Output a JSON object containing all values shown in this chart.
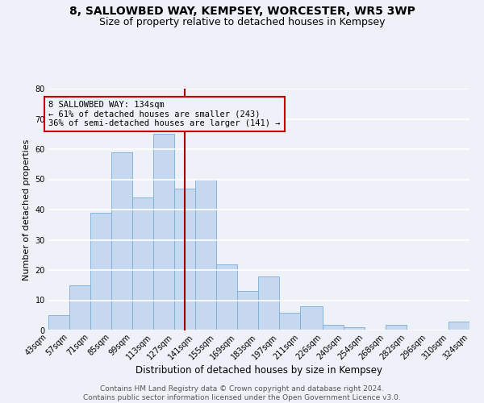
{
  "title": "8, SALLOWBED WAY, KEMPSEY, WORCESTER, WR5 3WP",
  "subtitle": "Size of property relative to detached houses in Kempsey",
  "xlabel": "Distribution of detached houses by size in Kempsey",
  "ylabel": "Number of detached properties",
  "bar_color": "#c5d8f0",
  "bar_edge_color": "#7aadd4",
  "background_color": "#eef2f8",
  "grid_color": "#ffffff",
  "bins": [
    43,
    57,
    71,
    85,
    99,
    113,
    127,
    141,
    155,
    169,
    183,
    197,
    211,
    226,
    240,
    254,
    268,
    282,
    296,
    310,
    324
  ],
  "values": [
    5,
    15,
    39,
    59,
    44,
    65,
    47,
    50,
    22,
    13,
    18,
    6,
    8,
    2,
    1,
    0,
    2,
    0,
    0,
    3
  ],
  "xlabels": [
    "43sqm",
    "57sqm",
    "71sqm",
    "85sqm",
    "99sqm",
    "113sqm",
    "127sqm",
    "141sqm",
    "155sqm",
    "169sqm",
    "183sqm",
    "197sqm",
    "211sqm",
    "226sqm",
    "240sqm",
    "254sqm",
    "268sqm",
    "282sqm",
    "296sqm",
    "310sqm",
    "324sqm"
  ],
  "ylim": [
    0,
    80
  ],
  "yticks": [
    0,
    10,
    20,
    30,
    40,
    50,
    60,
    70,
    80
  ],
  "property_line_x": 134,
  "property_line_color": "#aa0000",
  "annotation_box_text": "8 SALLOWBED WAY: 134sqm\n← 61% of detached houses are smaller (243)\n36% of semi-detached houses are larger (141) →",
  "annotation_box_color": "#cc0000",
  "footer_line1": "Contains HM Land Registry data © Crown copyright and database right 2024.",
  "footer_line2": "Contains public sector information licensed under the Open Government Licence v3.0.",
  "title_fontsize": 10,
  "subtitle_fontsize": 9,
  "xlabel_fontsize": 8.5,
  "ylabel_fontsize": 8,
  "tick_fontsize": 7,
  "footer_fontsize": 6.5,
  "ann_fontsize": 7.5
}
